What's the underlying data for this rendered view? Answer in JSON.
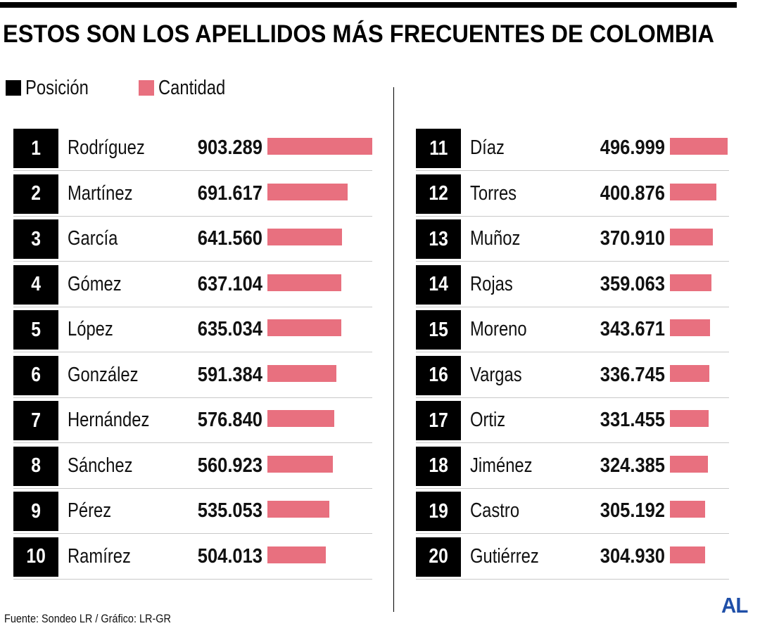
{
  "title": "ESTOS SON LOS APELLIDOS MÁS FRECUENTES DE COLOMBIA",
  "legend": [
    {
      "label": "Posición",
      "color": "#000000"
    },
    {
      "label": "Cantidad",
      "color": "#e8707f"
    }
  ],
  "source": "Fuente: Sondeo LR / Gráfico: LR-GR",
  "logo": "AL",
  "colors": {
    "bar": "#e8707f",
    "rank_box": "#000000",
    "logo": "#1f4fa8"
  },
  "chart_data": {
    "type": "bar",
    "title": "ESTOS SON LOS APELLIDOS MÁS FRECUENTES DE COLOMBIA",
    "grid": false,
    "legend_position": "top-left",
    "rows": [
      {
        "rank": "1",
        "name": "Rodríguez",
        "label": "903.289",
        "value": 903289
      },
      {
        "rank": "2",
        "name": "Martínez",
        "label": "691.617",
        "value": 691617
      },
      {
        "rank": "3",
        "name": "García",
        "label": "641.560",
        "value": 641560
      },
      {
        "rank": "4",
        "name": "Gómez",
        "label": "637.104",
        "value": 637104
      },
      {
        "rank": "5",
        "name": "López",
        "label": "635.034",
        "value": 635034
      },
      {
        "rank": "6",
        "name": "González",
        "label": "591.384",
        "value": 591384
      },
      {
        "rank": "7",
        "name": "Hernández",
        "label": "576.840",
        "value": 576840
      },
      {
        "rank": "8",
        "name": "Sánchez",
        "label": "560.923",
        "value": 560923
      },
      {
        "rank": "9",
        "name": "Pérez",
        "label": "535.053",
        "value": 535053
      },
      {
        "rank": "10",
        "name": "Ramírez",
        "label": "504.013",
        "value": 504013
      },
      {
        "rank": "11",
        "name": "Díaz",
        "label": "496.999",
        "value": 496999
      },
      {
        "rank": "12",
        "name": "Torres",
        "label": "400.876",
        "value": 400876
      },
      {
        "rank": "13",
        "name": "Muñoz",
        "label": "370.910",
        "value": 370910
      },
      {
        "rank": "14",
        "name": "Rojas",
        "label": "359.063",
        "value": 359063
      },
      {
        "rank": "15",
        "name": "Moreno",
        "label": "343.671",
        "value": 343671
      },
      {
        "rank": "16",
        "name": "Vargas",
        "label": "336.745",
        "value": 336745
      },
      {
        "rank": "17",
        "name": "Ortiz",
        "label": "331.455",
        "value": 331455
      },
      {
        "rank": "18",
        "name": "Jiménez",
        "label": "324.385",
        "value": 324385
      },
      {
        "rank": "19",
        "name": "Castro",
        "label": "305.192",
        "value": 305192
      },
      {
        "rank": "20",
        "name": "Gutiérrez",
        "label": "304.930",
        "value": 304930
      }
    ]
  }
}
